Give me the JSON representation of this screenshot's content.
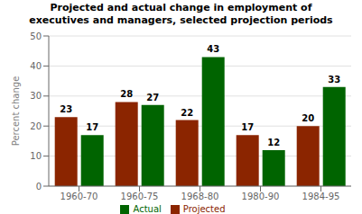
{
  "chart_data": {
    "type": "bar",
    "title": "Projected and actual change in employment of\nexecutives and managers, selected projection periods",
    "categories": [
      "1960-70",
      "1960-75",
      "1968-80",
      "1980-90",
      "1984-95"
    ],
    "series": [
      {
        "name": "Projected",
        "color": "#8B2500",
        "values": [
          23,
          28,
          22,
          17,
          20
        ]
      },
      {
        "name": "Actual",
        "color": "#006400",
        "values": [
          17,
          27,
          43,
          12,
          33
        ]
      }
    ],
    "ylabel": "Percent change",
    "ylim": [
      0,
      50
    ],
    "yticks": [
      0,
      10,
      20,
      30,
      40,
      50
    ],
    "grid": true,
    "legend": "bottom",
    "data_labels": true
  }
}
